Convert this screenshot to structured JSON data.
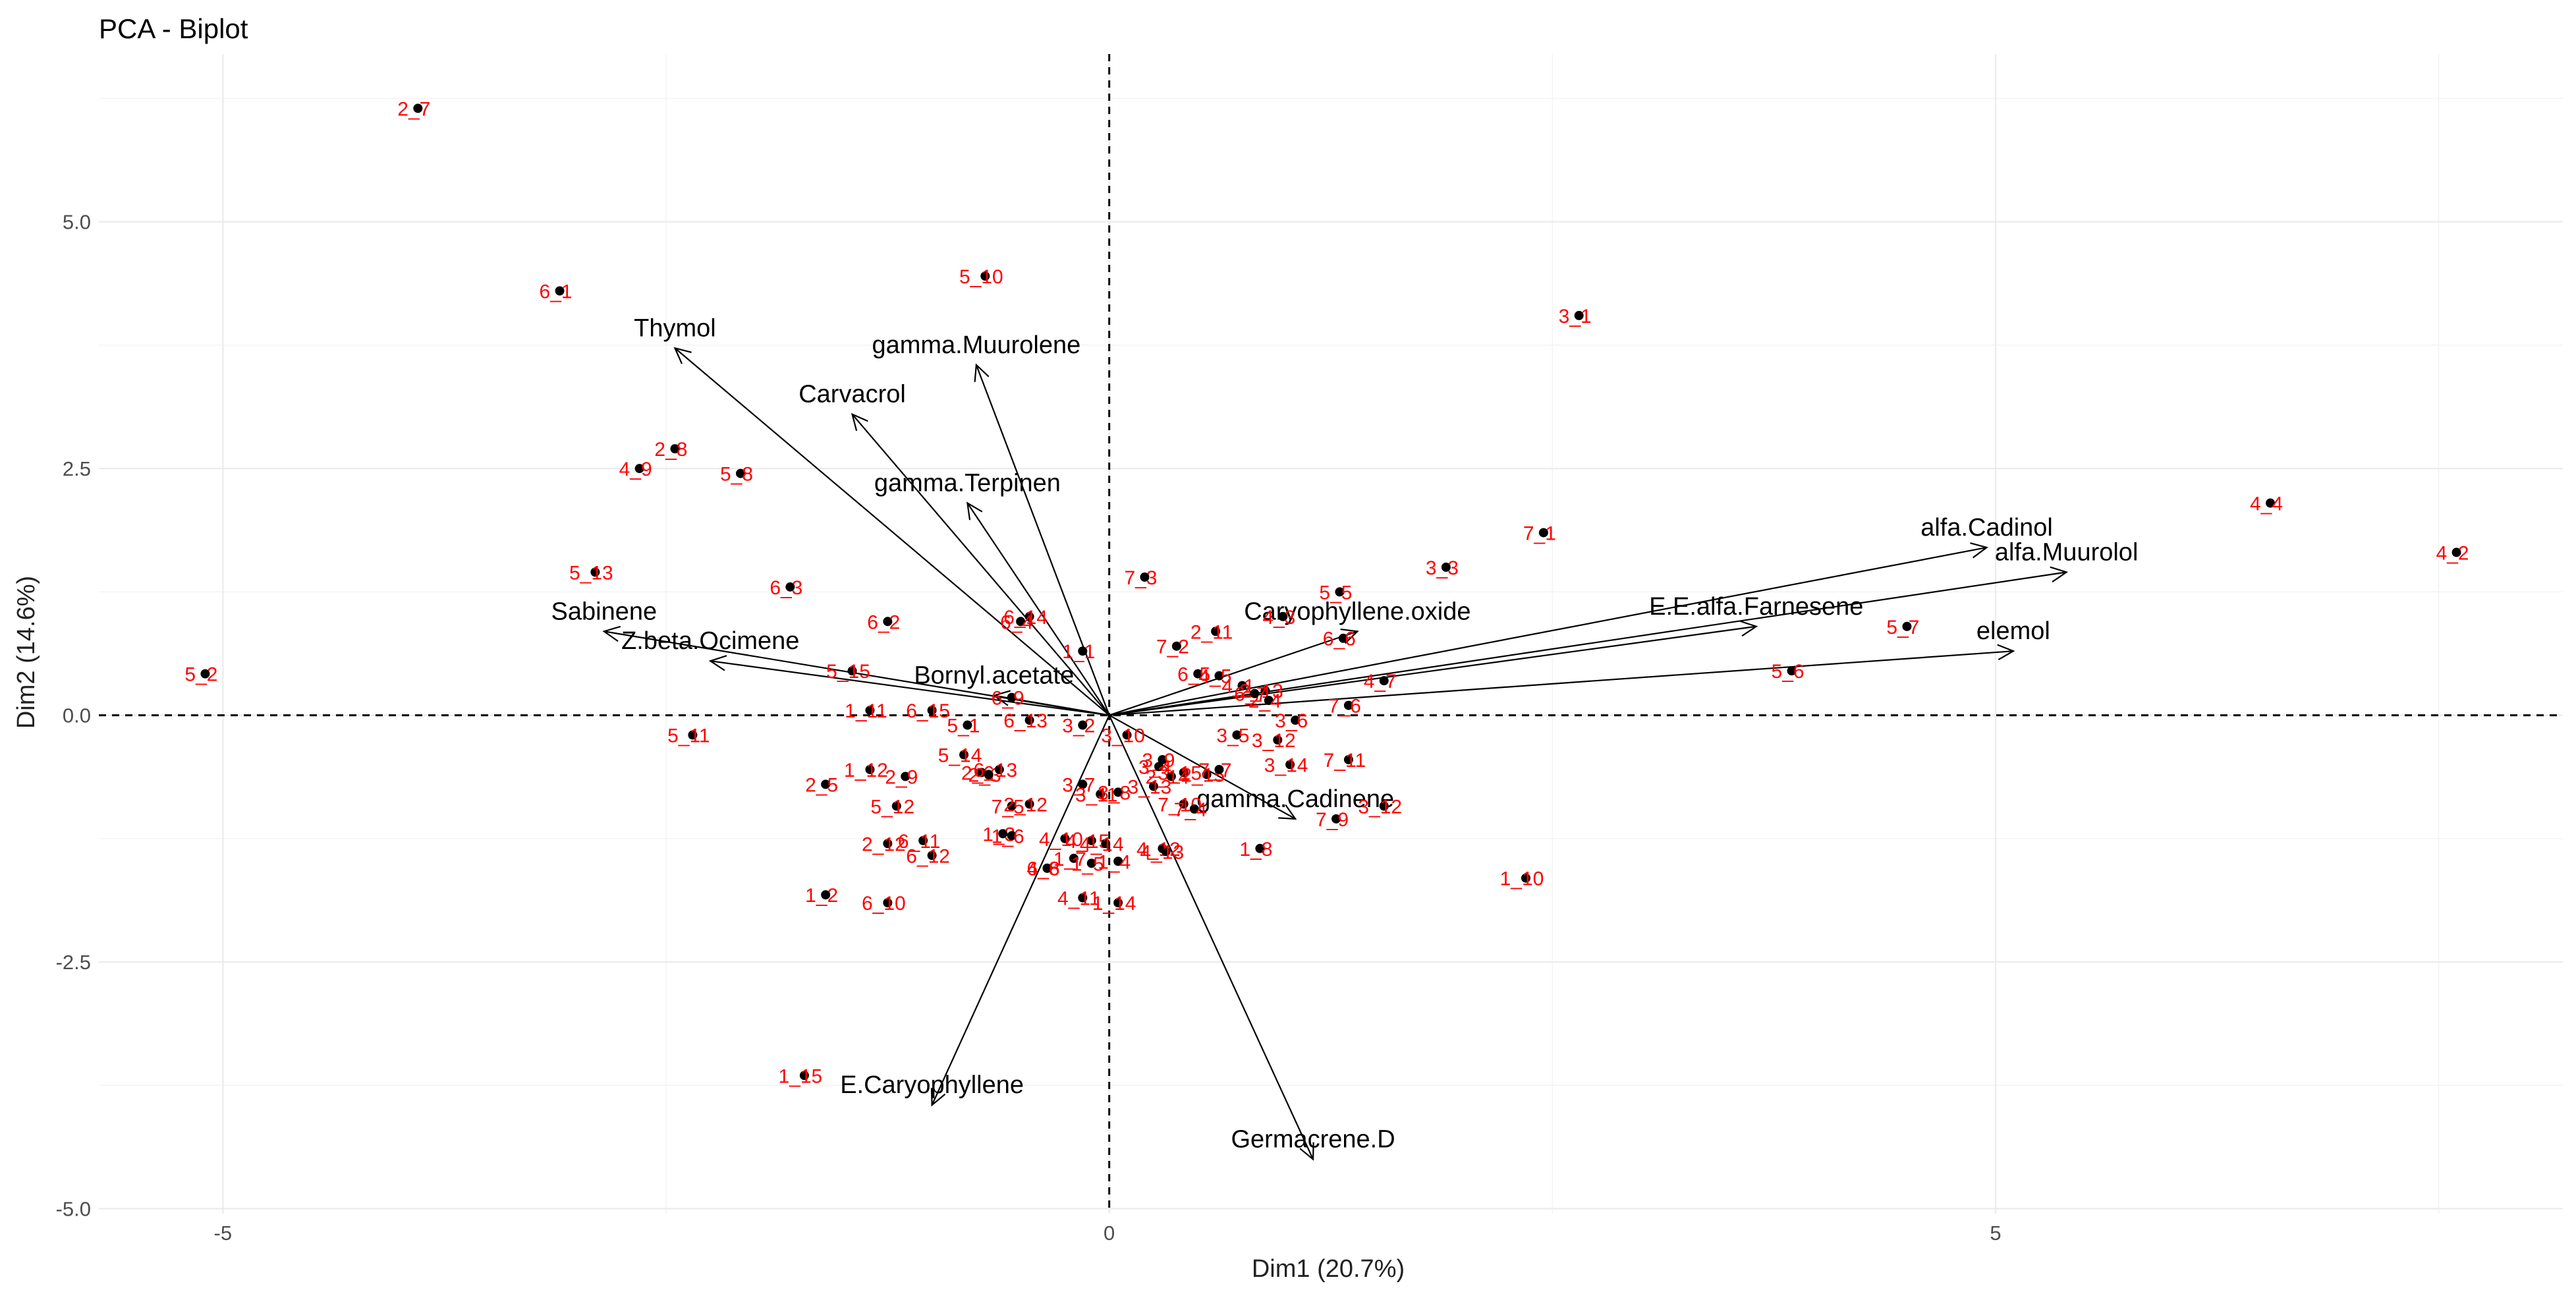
{
  "chart_data": {
    "type": "scatter",
    "title": "PCA - Biplot",
    "xlabel": "Dim1 (20.7%)",
    "ylabel": "Dim2 (14.6%)",
    "xlim": [
      -5.7,
      8.2
    ],
    "ylim": [
      -5.05,
      6.7
    ],
    "x_ticks": [
      -5,
      0,
      5
    ],
    "x_tick_labels": [
      "-5",
      "0",
      "5"
    ],
    "y_ticks": [
      -5,
      -2.5,
      0,
      2.5,
      5
    ],
    "y_tick_labels": [
      "-5.0",
      "-2.5",
      "0.0",
      "2.5",
      "5.0"
    ],
    "grid": true,
    "observations": [
      {
        "label": "2_7",
        "x": -3.9,
        "y": 6.15
      },
      {
        "label": "6_1",
        "x": -3.1,
        "y": 4.3
      },
      {
        "label": "5_10",
        "x": -0.7,
        "y": 4.45
      },
      {
        "label": "3_1",
        "x": 2.65,
        "y": 4.05
      },
      {
        "label": "2_8",
        "x": -2.45,
        "y": 2.7
      },
      {
        "label": "4_9",
        "x": -2.65,
        "y": 2.5
      },
      {
        "label": "5_8",
        "x": -2.08,
        "y": 2.45
      },
      {
        "label": "4_4",
        "x": 6.55,
        "y": 2.15
      },
      {
        "label": "4_2",
        "x": 7.6,
        "y": 1.65
      },
      {
        "label": "7_1",
        "x": 2.45,
        "y": 1.85
      },
      {
        "label": "5_13",
        "x": -2.9,
        "y": 1.45
      },
      {
        "label": "6_3",
        "x": -1.8,
        "y": 1.3
      },
      {
        "label": "3_3",
        "x": 1.9,
        "y": 1.5
      },
      {
        "label": "7_3",
        "x": 0.2,
        "y": 1.4
      },
      {
        "label": "5_5",
        "x": 1.3,
        "y": 1.25
      },
      {
        "label": "5_2",
        "x": -5.1,
        "y": 0.42
      },
      {
        "label": "6_2",
        "x": -1.25,
        "y": 0.95
      },
      {
        "label": "5_7",
        "x": 4.5,
        "y": 0.9
      },
      {
        "label": "5_6",
        "x": 3.85,
        "y": 0.45
      },
      {
        "label": "5_15",
        "x": -1.45,
        "y": 0.45
      },
      {
        "label": "1_11",
        "x": -1.35,
        "y": 0.05
      },
      {
        "label": "5_11",
        "x": -2.35,
        "y": -0.2
      },
      {
        "label": "6_14",
        "x": -0.45,
        "y": 1.0
      },
      {
        "label": "6_4",
        "x": -0.5,
        "y": 0.95
      },
      {
        "label": "1_1",
        "x": -0.15,
        "y": 0.65
      },
      {
        "label": "7_2",
        "x": 0.38,
        "y": 0.7
      },
      {
        "label": "2_11",
        "x": 0.6,
        "y": 0.85
      },
      {
        "label": "4_3",
        "x": 0.98,
        "y": 1.0
      },
      {
        "label": "6_6",
        "x": 1.32,
        "y": 0.78
      },
      {
        "label": "6_5",
        "x": 0.5,
        "y": 0.42
      },
      {
        "label": "4_5",
        "x": 0.62,
        "y": 0.4
      },
      {
        "label": "4_1",
        "x": 0.75,
        "y": 0.3
      },
      {
        "label": "4_7",
        "x": 1.55,
        "y": 0.35
      },
      {
        "label": "7_6",
        "x": 1.35,
        "y": 0.1
      },
      {
        "label": "3_6",
        "x": 1.05,
        "y": -0.05
      },
      {
        "label": "2_13",
        "x": 0.88,
        "y": 0.25
      },
      {
        "label": "2_4",
        "x": 0.9,
        "y": 0.15
      },
      {
        "label": "6_7",
        "x": 0.82,
        "y": 0.22
      },
      {
        "label": "BorPoint1",
        "x": -0.55,
        "y": 0.18
      },
      {
        "label": "6_15",
        "x": -1.0,
        "y": 0.05
      },
      {
        "label": "5_1",
        "x": -0.8,
        "y": -0.1
      },
      {
        "label": "6_13",
        "x": -0.45,
        "y": -0.05
      },
      {
        "label": "3_2",
        "x": -0.15,
        "y": -0.1
      },
      {
        "label": "3_10",
        "x": 0.1,
        "y": -0.2
      },
      {
        "label": "3_5",
        "x": 0.72,
        "y": -0.2
      },
      {
        "label": "3_12",
        "x": 0.95,
        "y": -0.25
      },
      {
        "label": "3_14",
        "x": 1.02,
        "y": -0.5
      },
      {
        "label": "7_11",
        "x": 1.35,
        "y": -0.45
      },
      {
        "label": "5_14",
        "x": -0.82,
        "y": -0.4
      },
      {
        "label": "2_6",
        "x": -0.72,
        "y": -0.58
      },
      {
        "label": "2_3",
        "x": -0.68,
        "y": -0.6
      },
      {
        "label": "6_13b",
        "x": -0.62,
        "y": -0.55
      },
      {
        "label": "1_12",
        "x": -1.35,
        "y": -0.55
      },
      {
        "label": "2_9",
        "x": -1.15,
        "y": -0.62
      },
      {
        "label": "2_5",
        "x": -1.6,
        "y": -0.7
      },
      {
        "label": "3_7",
        "x": -0.15,
        "y": -0.7
      },
      {
        "label": "3_11",
        "x": -0.05,
        "y": -0.8
      },
      {
        "label": "3_9",
        "x": 0.3,
        "y": -0.45
      },
      {
        "label": "3_4",
        "x": 0.28,
        "y": -0.52
      },
      {
        "label": "3_15",
        "x": 0.42,
        "y": -0.58
      },
      {
        "label": "2_15",
        "x": 0.55,
        "y": -0.6
      },
      {
        "label": "2_14",
        "x": 0.35,
        "y": -0.62
      },
      {
        "label": "7_7",
        "x": 0.62,
        "y": -0.55
      },
      {
        "label": "3_13",
        "x": 0.25,
        "y": -0.72
      },
      {
        "label": "3_8",
        "x": 0.05,
        "y": -0.78
      },
      {
        "label": "7_10",
        "x": 0.42,
        "y": -0.9
      },
      {
        "label": "7_4",
        "x": 0.48,
        "y": -0.95
      },
      {
        "label": "7_5",
        "x": -0.55,
        "y": -0.92
      },
      {
        "label": "2_12b",
        "x": -0.45,
        "y": -0.9
      },
      {
        "label": "5_12",
        "x": -1.2,
        "y": -0.92
      },
      {
        "label": "3_12b",
        "x": 1.55,
        "y": -0.92
      },
      {
        "label": "7_9",
        "x": 1.28,
        "y": -1.05
      },
      {
        "label": "1_3",
        "x": -0.6,
        "y": -1.2
      },
      {
        "label": "1_6",
        "x": -0.55,
        "y": -1.22
      },
      {
        "label": "4_10",
        "x": -0.25,
        "y": -1.25
      },
      {
        "label": "4_15",
        "x": -0.1,
        "y": -1.27
      },
      {
        "label": "4_14",
        "x": -0.02,
        "y": -1.3
      },
      {
        "label": "4_12",
        "x": 0.3,
        "y": -1.35
      },
      {
        "label": "4_13",
        "x": 0.32,
        "y": -1.38
      },
      {
        "label": "2_12",
        "x": -1.25,
        "y": -1.3
      },
      {
        "label": "6_11",
        "x": -1.05,
        "y": -1.27
      },
      {
        "label": "6_12",
        "x": -1.0,
        "y": -1.42
      },
      {
        "label": "1_8",
        "x": 0.85,
        "y": -1.35
      },
      {
        "label": "1_7",
        "x": -0.2,
        "y": -1.45
      },
      {
        "label": "1_5",
        "x": -0.1,
        "y": -1.5
      },
      {
        "label": "1_4",
        "x": 0.05,
        "y": -1.48
      },
      {
        "label": "6_8",
        "x": -0.35,
        "y": -1.55
      },
      {
        "label": "4_6",
        "x": -0.35,
        "y": -1.55
      },
      {
        "label": "1_10",
        "x": 2.35,
        "y": -1.65
      },
      {
        "label": "1_2",
        "x": -1.6,
        "y": -1.82
      },
      {
        "label": "6_10",
        "x": -1.25,
        "y": -1.9
      },
      {
        "label": "4_11",
        "x": -0.15,
        "y": -1.85
      },
      {
        "label": "1_14",
        "x": 0.05,
        "y": -1.9
      },
      {
        "label": "1_15",
        "x": -1.72,
        "y": -3.65
      }
    ],
    "variables": [
      {
        "name": "Thymol",
        "x": -2.45,
        "y": 3.72
      },
      {
        "name": "gamma.Muurolene",
        "x": -0.75,
        "y": 3.55
      },
      {
        "name": "Carvacrol",
        "x": -1.45,
        "y": 3.05
      },
      {
        "name": "gamma.Terpinen",
        "x": -0.8,
        "y": 2.15
      },
      {
        "name": "Sabinene",
        "x": -2.85,
        "y": 0.85
      },
      {
        "name": "Z.beta.Ocimene",
        "x": -2.25,
        "y": 0.55
      },
      {
        "name": "Bornyl.acetate",
        "x": -0.65,
        "y": 0.2
      },
      {
        "name": "E.Caryophyllene",
        "x": -1.0,
        "y": -3.95
      },
      {
        "name": "Germacrene.D",
        "x": 1.15,
        "y": -4.5
      },
      {
        "name": "gamma.Cadinene",
        "x": 1.05,
        "y": -1.05
      },
      {
        "name": "Caryophyllene.oxide",
        "x": 1.4,
        "y": 0.85
      },
      {
        "name": "E.E.alfa.Farnesene",
        "x": 3.65,
        "y": 0.9
      },
      {
        "name": "alfa.Cadinol",
        "x": 4.95,
        "y": 1.7
      },
      {
        "name": "alfa.Muurolol",
        "x": 5.4,
        "y": 1.45
      },
      {
        "name": "elemol",
        "x": 5.1,
        "y": 0.65
      }
    ]
  },
  "label_text": {
    "BorPoint1": "6_9",
    "6_13b": "6_13",
    "2_12b": "2_12",
    "3_12b": "3_12"
  }
}
